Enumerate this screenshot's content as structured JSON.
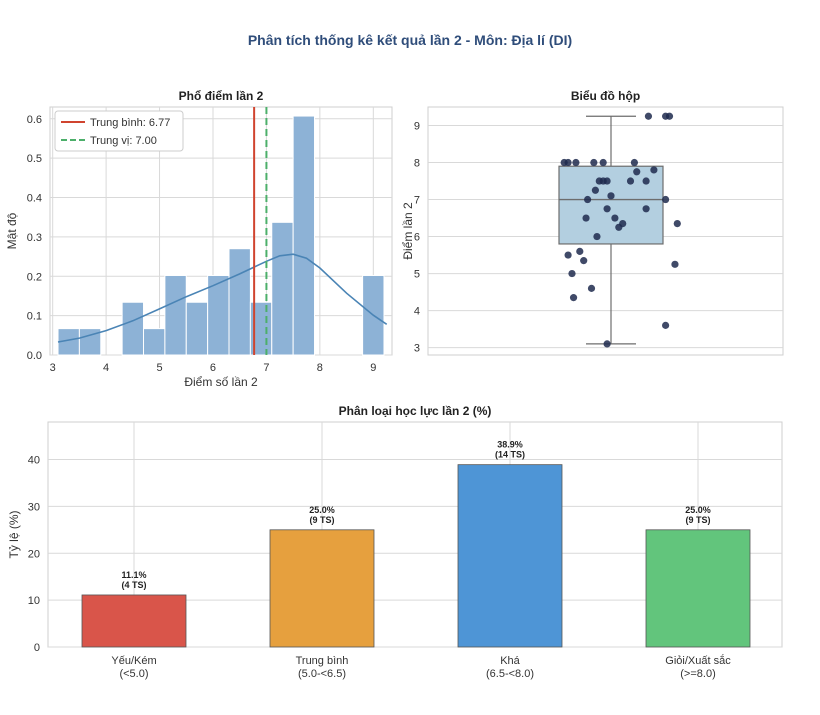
{
  "suptitle": "Phân tích thống kê kết quả lần 2 - Môn: Địa lí (DI)",
  "colors": {
    "title": "#2f4d7a",
    "grid": "#d9d9d9",
    "hist_bar": "#8db2d6",
    "kde": "#4a84b5",
    "mean_line": "#d0442f",
    "median_line": "#4caf6a",
    "box_fill": "#b3cfe0",
    "box_edge": "#6d6d6d",
    "points": "#1f2a4e"
  },
  "chart_data": [
    {
      "id": "hist",
      "type": "bar",
      "title": "Phổ điểm lần 2",
      "xlabel": "Điểm số lần 2",
      "ylabel": "Mật độ",
      "xlim": [
        2.95,
        9.35
      ],
      "ylim": [
        0,
        0.63
      ],
      "xticks": [
        3,
        4,
        5,
        6,
        7,
        8,
        9
      ],
      "yticks": [
        0.0,
        0.1,
        0.2,
        0.3,
        0.4,
        0.5,
        0.6
      ],
      "grid": true,
      "legend_position": "top-left",
      "bins": [
        {
          "x0": 3.1,
          "x1": 3.5,
          "value": 0.067
        },
        {
          "x0": 3.5,
          "x1": 3.9,
          "value": 0.067
        },
        {
          "x0": 4.3,
          "x1": 4.7,
          "value": 0.134
        },
        {
          "x0": 4.7,
          "x1": 5.1,
          "value": 0.067
        },
        {
          "x0": 5.1,
          "x1": 5.5,
          "value": 0.202
        },
        {
          "x0": 5.5,
          "x1": 5.9,
          "value": 0.134
        },
        {
          "x0": 5.9,
          "x1": 6.3,
          "value": 0.202
        },
        {
          "x0": 6.3,
          "x1": 6.7,
          "value": 0.27
        },
        {
          "x0": 6.7,
          "x1": 7.1,
          "value": 0.134
        },
        {
          "x0": 7.1,
          "x1": 7.5,
          "value": 0.337
        },
        {
          "x0": 7.5,
          "x1": 7.9,
          "value": 0.607
        },
        {
          "x0": 8.8,
          "x1": 9.2,
          "value": 0.202
        }
      ],
      "kde": {
        "x": [
          3.1,
          3.5,
          4.0,
          4.5,
          5.0,
          5.5,
          6.0,
          6.5,
          7.0,
          7.25,
          7.5,
          7.75,
          8.0,
          8.5,
          9.0,
          9.25
        ],
        "y": [
          0.033,
          0.043,
          0.062,
          0.087,
          0.117,
          0.148,
          0.176,
          0.206,
          0.238,
          0.252,
          0.256,
          0.246,
          0.221,
          0.157,
          0.101,
          0.078
        ]
      },
      "mean": 6.77,
      "median": 7.0,
      "legend": [
        "Trung bình: 6.77",
        "Trung vị: 7.00"
      ]
    },
    {
      "id": "box",
      "type": "box",
      "title": "Biểu đồ hộp",
      "ylabel": "Điểm lần 2",
      "ylim": [
        2.8,
        9.5
      ],
      "yticks": [
        3,
        4,
        5,
        6,
        7,
        8,
        9
      ],
      "grid": true,
      "box": {
        "min": 3.1,
        "q1": 5.8,
        "median": 7.0,
        "q3": 7.9,
        "max": 9.25
      },
      "points": [
        {
          "j": -0.6,
          "y": 8.0
        },
        {
          "j": -0.55,
          "y": 8.0
        },
        {
          "j": -0.45,
          "y": 8.0
        },
        {
          "j": -0.22,
          "y": 8.0
        },
        {
          "j": -0.1,
          "y": 8.0
        },
        {
          "j": 0.3,
          "y": 8.0
        },
        {
          "j": 0.48,
          "y": 9.25
        },
        {
          "j": 0.7,
          "y": 9.25
        },
        {
          "j": 0.75,
          "y": 9.25
        },
        {
          "j": 0.55,
          "y": 7.8
        },
        {
          "j": 0.33,
          "y": 7.75
        },
        {
          "j": 0.45,
          "y": 7.5
        },
        {
          "j": -0.15,
          "y": 7.5
        },
        {
          "j": -0.1,
          "y": 7.5
        },
        {
          "j": -0.05,
          "y": 7.5
        },
        {
          "j": 0.25,
          "y": 7.5
        },
        {
          "j": 0.7,
          "y": 7.0
        },
        {
          "j": 0.45,
          "y": 6.75
        },
        {
          "j": -0.2,
          "y": 7.25
        },
        {
          "j": -0.3,
          "y": 7.0
        },
        {
          "j": 0.0,
          "y": 7.1
        },
        {
          "j": -0.05,
          "y": 6.75
        },
        {
          "j": 0.05,
          "y": 6.5
        },
        {
          "j": -0.32,
          "y": 6.5
        },
        {
          "j": 0.1,
          "y": 6.25
        },
        {
          "j": 0.15,
          "y": 6.35
        },
        {
          "j": 0.85,
          "y": 6.35
        },
        {
          "j": -0.18,
          "y": 6.0
        },
        {
          "j": -0.55,
          "y": 5.5
        },
        {
          "j": -0.4,
          "y": 5.6
        },
        {
          "j": -0.35,
          "y": 5.35
        },
        {
          "j": -0.5,
          "y": 5.0
        },
        {
          "j": 0.82,
          "y": 5.25
        },
        {
          "j": -0.48,
          "y": 4.35
        },
        {
          "j": -0.25,
          "y": 4.6
        },
        {
          "j": 0.7,
          "y": 3.6
        },
        {
          "j": -0.05,
          "y": 3.1
        }
      ]
    },
    {
      "id": "classify",
      "type": "bar",
      "title": "Phân loại học lực lần 2 (%)",
      "ylabel": "Tỷ lệ (%)",
      "ylim": [
        0,
        48
      ],
      "yticks": [
        0,
        10,
        20,
        30,
        40
      ],
      "grid": true,
      "categories": [
        {
          "name": "Yếu/Kém",
          "range": "(<5.0)",
          "value": 11.1,
          "pct_label": "11.1%",
          "count_label": "(4 TS)",
          "color": "#d9554a"
        },
        {
          "name": "Trung bình",
          "range": "(5.0-<6.5)",
          "value": 25.0,
          "pct_label": "25.0%",
          "count_label": "(9 TS)",
          "color": "#e6a03e"
        },
        {
          "name": "Khá",
          "range": "(6.5-<8.0)",
          "value": 38.9,
          "pct_label": "38.9%",
          "count_label": "(14 TS)",
          "color": "#4e95d6"
        },
        {
          "name": "Giỏi/Xuất sắc",
          "range": "(>=8.0)",
          "value": 25.0,
          "pct_label": "25.0%",
          "count_label": "(9 TS)",
          "color": "#62c57c"
        }
      ]
    }
  ]
}
